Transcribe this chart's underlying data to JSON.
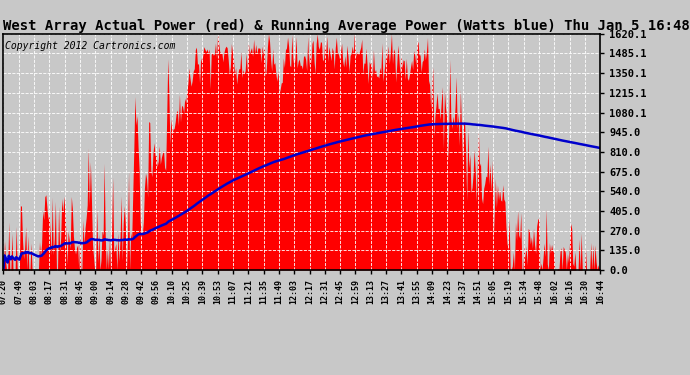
{
  "title": "West Array Actual Power (red) & Running Average Power (Watts blue) Thu Jan 5 16:48",
  "copyright": "Copyright 2012 Cartronics.com",
  "ylabel_right_ticks": [
    0.0,
    135.0,
    270.0,
    405.0,
    540.0,
    675.0,
    810.0,
    945.0,
    1080.0,
    1215.0,
    1350.0,
    1485.0,
    1620.0
  ],
  "ylabel_right_labels": [
    "0.0",
    "135.0",
    "270.0",
    "405.0",
    "540.0",
    "675.0",
    "810.0",
    "945.0",
    "1080.1",
    "1215.1",
    "1350.1",
    "1485.1",
    "1620.1"
  ],
  "ymax": 1620.1,
  "ymin": 0.0,
  "xtick_labels": [
    "07:20",
    "07:49",
    "08:03",
    "08:17",
    "08:31",
    "08:45",
    "09:00",
    "09:14",
    "09:28",
    "09:42",
    "09:56",
    "10:10",
    "10:25",
    "10:39",
    "10:53",
    "11:07",
    "11:21",
    "11:35",
    "11:49",
    "12:03",
    "12:17",
    "12:31",
    "12:45",
    "12:59",
    "13:13",
    "13:27",
    "13:41",
    "13:55",
    "14:09",
    "14:23",
    "14:37",
    "14:51",
    "15:05",
    "15:19",
    "15:34",
    "15:48",
    "16:02",
    "16:16",
    "16:30",
    "16:44"
  ],
  "bar_color": "#ff0000",
  "line_color": "#0000cc",
  "bg_color": "#c8c8c8",
  "title_color": "#000000",
  "title_fontsize": 10,
  "copyright_fontsize": 7,
  "grid_color": "#ffffff",
  "border_color": "#000000",
  "panel_bg": "#c8c8c8"
}
